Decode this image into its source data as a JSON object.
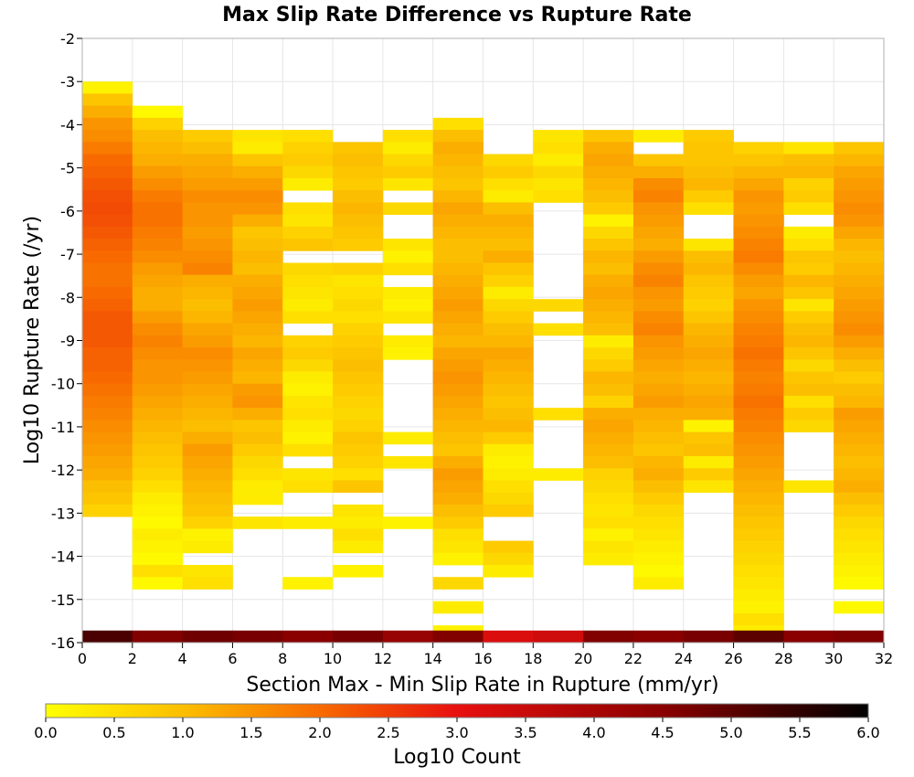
{
  "chart_data": {
    "type": "heatmap",
    "title": "Max Slip Rate Difference vs Rupture Rate",
    "xlabel": "Section Max - Min Slip Rate in Rupture (mm/yr)",
    "ylabel": "Log10 Rupture Rate (/yr)",
    "xlim": [
      0,
      32
    ],
    "ylim": [
      -16,
      -2
    ],
    "x_ticks": [
      "0",
      "2",
      "4",
      "6",
      "8",
      "10",
      "12",
      "14",
      "16",
      "18",
      "20",
      "22",
      "24",
      "26",
      "28",
      "30",
      "32"
    ],
    "y_ticks": [
      "-2",
      "-3",
      "-4",
      "-5",
      "-6",
      "-7",
      "-8",
      "-9",
      "-10",
      "-11",
      "-12",
      "-13",
      "-14",
      "-15",
      "-16"
    ],
    "grid": true,
    "x_bin_width": 2,
    "y_bin_height": 0.28,
    "colorbar": {
      "label": "Log10 Count",
      "range": [
        0.0,
        6.0
      ],
      "ticks": [
        "0.0",
        "0.5",
        "1.0",
        "1.5",
        "2.0",
        "2.5",
        "3.0",
        "3.5",
        "4.0",
        "4.5",
        "5.0",
        "5.5",
        "6.0"
      ],
      "stops": [
        [
          0.0,
          "#ffff00"
        ],
        [
          1.0,
          "#fcbe00"
        ],
        [
          2.0,
          "#f86a00"
        ],
        [
          3.0,
          "#e81010"
        ],
        [
          4.5,
          "#8a0000"
        ],
        [
          6.0,
          "#000000"
        ]
      ]
    },
    "columns": [
      {
        "x_start": 0,
        "y_top": -3.0,
        "y_bottom": -15.72,
        "low_bin_value": 5.2,
        "values": [
          0.2,
          0.9,
          1.2,
          1.5,
          1.6,
          1.8,
          2.0,
          2.1,
          2.2,
          2.3,
          2.35,
          2.3,
          2.2,
          2.1,
          2.0,
          1.9,
          1.9,
          2.0,
          2.1,
          2.2,
          2.2,
          2.2,
          2.1,
          2.1,
          2.0,
          1.9,
          1.8,
          1.7,
          1.6,
          1.5,
          1.4,
          1.3,
          1.2,
          1.0,
          0.9,
          0.7
        ]
      },
      {
        "x_start": 2,
        "y_top": -3.56,
        "y_bottom": -15.72,
        "low_bin_value": 4.6,
        "values": [
          0.1,
          0.7,
          1.0,
          1.1,
          1.2,
          1.4,
          1.6,
          1.8,
          1.9,
          1.9,
          1.8,
          1.7,
          1.6,
          1.4,
          1.3,
          1.2,
          1.2,
          1.4,
          1.6,
          1.7,
          1.6,
          1.5,
          1.5,
          1.4,
          1.3,
          1.2,
          1.1,
          1.0,
          0.9,
          0.8,
          0.7,
          0.5,
          0.3,
          0.2,
          0.1,
          0.3,
          0.2,
          0.1,
          0.5,
          0.1
        ]
      },
      {
        "x_start": 4,
        "y_top": -4.12,
        "y_bottom": -15.72,
        "low_bin_value": 4.8,
        "values": [
          0.8,
          1.0,
          1.2,
          1.3,
          1.4,
          1.6,
          1.5,
          1.5,
          1.4,
          1.5,
          1.6,
          1.7,
          1.2,
          1.1,
          1.0,
          1.1,
          1.3,
          1.4,
          1.6,
          1.5,
          1.4,
          1.3,
          1.2,
          1.1,
          1.0,
          1.2,
          1.4,
          1.3,
          1.2,
          1.1,
          1.0,
          0.9,
          0.7,
          0.2,
          0.3,
          null,
          0.4,
          0.5
        ]
      },
      {
        "x_start": 6,
        "y_top": -4.12,
        "y_bottom": -15.72,
        "low_bin_value": 4.7,
        "values": [
          0.4,
          0.3,
          0.9,
          1.2,
          1.4,
          1.6,
          1.5,
          1.2,
          0.9,
          1.0,
          1.1,
          1.0,
          1.2,
          1.3,
          1.4,
          1.3,
          1.2,
          1.1,
          1.3,
          1.2,
          1.1,
          1.4,
          1.5,
          1.2,
          0.9,
          1.0,
          0.8,
          0.6,
          0.5,
          0.3,
          0.3,
          null,
          0.4
        ]
      },
      {
        "x_start": 8,
        "y_top": -4.12,
        "y_bottom": -15.72,
        "low_bin_value": 4.5,
        "values": [
          0.5,
          0.7,
          0.8,
          0.6,
          0.3,
          null,
          0.5,
          0.4,
          0.7,
          0.9,
          null,
          0.6,
          0.5,
          0.4,
          0.3,
          0.5,
          null,
          0.7,
          0.8,
          0.6,
          0.3,
          0.2,
          0.4,
          0.5,
          0.3,
          0.2,
          0.5,
          null,
          0.4,
          0.5,
          null,
          null,
          0.3,
          null,
          null,
          null,
          null,
          0.2
        ]
      },
      {
        "x_start": 10,
        "y_top": -4.4,
        "y_bottom": -15.72,
        "low_bin_value": 4.7,
        "values": [
          0.9,
          1.0,
          0.9,
          0.8,
          1.0,
          1.1,
          1.0,
          0.9,
          0.8,
          null,
          0.7,
          0.4,
          0.5,
          0.6,
          0.5,
          0.7,
          0.8,
          0.9,
          1.0,
          0.9,
          0.8,
          0.7,
          0.6,
          0.7,
          0.9,
          0.8,
          0.7,
          0.5,
          0.9,
          null,
          0.4,
          0.3,
          0.5,
          0.3,
          null,
          0.2
        ]
      },
      {
        "x_start": 12,
        "y_top": -4.12,
        "y_bottom": -15.72,
        "low_bin_value": 4.3,
        "values": [
          0.5,
          0.3,
          0.6,
          0.8,
          0.4,
          null,
          0.6,
          null,
          null,
          0.4,
          0.2,
          0.5,
          null,
          0.3,
          0.2,
          0.4,
          null,
          0.3,
          0.2,
          null,
          null,
          null,
          null,
          null,
          null,
          0.3,
          null,
          0.4,
          null,
          null,
          null,
          null,
          0.2
        ]
      },
      {
        "x_start": 14,
        "y_top": -3.84,
        "y_bottom": -15.72,
        "low_bin_value": 4.6,
        "values": [
          0.5,
          1.0,
          1.2,
          1.1,
          1.0,
          0.9,
          1.1,
          1.3,
          1.2,
          1.1,
          1.0,
          1.0,
          1.1,
          1.2,
          1.3,
          1.4,
          1.3,
          1.2,
          1.1,
          1.3,
          1.4,
          1.5,
          1.4,
          1.3,
          1.2,
          1.1,
          1.0,
          0.9,
          1.2,
          1.4,
          1.3,
          1.2,
          1.0,
          0.8,
          0.5,
          0.4,
          0.2,
          null,
          0.6,
          null,
          0.3,
          null,
          0.2
        ]
      },
      {
        "x_start": 16,
        "y_top": -4.68,
        "y_bottom": -15.72,
        "low_bin_value": 3.2,
        "values": [
          0.6,
          0.8,
          0.5,
          0.3,
          1.0,
          1.2,
          1.1,
          1.0,
          1.2,
          0.9,
          0.7,
          0.3,
          0.6,
          0.8,
          1.0,
          1.1,
          1.3,
          1.2,
          1.1,
          1.0,
          0.9,
          1.0,
          1.1,
          0.8,
          0.3,
          0.2,
          0.3,
          0.5,
          0.6,
          0.8,
          null,
          null,
          0.8,
          0.6,
          0.3
        ]
      },
      {
        "x_start": 18,
        "y_top": -4.12,
        "y_bottom": -15.72,
        "low_bin_value": 3.4,
        "values": [
          0.4,
          0.5,
          0.3,
          0.6,
          0.4,
          0.5,
          null,
          null,
          null,
          null,
          null,
          null,
          null,
          null,
          0.6,
          null,
          0.5,
          null,
          null,
          null,
          null,
          null,
          null,
          0.5,
          null,
          null,
          null,
          null,
          0.3
        ]
      },
      {
        "x_start": 20,
        "y_top": -4.12,
        "y_bottom": -15.72,
        "low_bin_value": 4.6,
        "values": [
          0.9,
          1.2,
          1.3,
          1.2,
          1.1,
          1.0,
          0.8,
          0.2,
          0.6,
          0.9,
          1.1,
          1.0,
          1.2,
          1.3,
          1.2,
          1.1,
          1.0,
          0.3,
          0.6,
          0.8,
          1.1,
          1.0,
          0.7,
          1.2,
          1.3,
          1.2,
          1.1,
          1.0,
          0.7,
          0.6,
          0.5,
          0.4,
          0.5,
          0.2,
          0.4,
          0.3
        ]
      },
      {
        "x_start": 22,
        "y_top": -4.12,
        "y_bottom": -15.72,
        "low_bin_value": 4.5,
        "values": [
          0.3,
          null,
          0.9,
          1.2,
          1.6,
          1.7,
          1.5,
          1.4,
          1.3,
          1.2,
          1.4,
          1.6,
          1.7,
          1.5,
          1.4,
          1.6,
          1.7,
          1.5,
          1.4,
          1.3,
          1.2,
          1.3,
          1.4,
          1.2,
          1.1,
          1.0,
          0.9,
          1.1,
          1.2,
          1.0,
          0.8,
          0.6,
          0.5,
          0.4,
          0.3,
          0.2,
          0.1,
          0.3
        ]
      },
      {
        "x_start": 24,
        "y_top": -4.12,
        "y_bottom": -15.72,
        "low_bin_value": 4.7,
        "values": [
          0.8,
          0.9,
          0.9,
          1.0,
          1.1,
          0.8,
          0.5,
          null,
          null,
          0.4,
          1.0,
          1.1,
          0.9,
          0.8,
          0.7,
          0.9,
          1.1,
          1.2,
          1.3,
          1.2,
          1.1,
          1.2,
          1.3,
          1.2,
          0.2,
          0.9,
          1.0,
          0.3,
          0.8,
          0.4
        ]
      },
      {
        "x_start": 26,
        "y_top": -4.4,
        "y_bottom": -15.72,
        "low_bin_value": 5.0,
        "values": [
          0.7,
          0.9,
          1.1,
          1.3,
          1.5,
          1.4,
          1.5,
          1.6,
          1.7,
          1.8,
          1.6,
          1.4,
          1.3,
          1.5,
          1.6,
          1.7,
          1.8,
          1.9,
          1.8,
          1.7,
          1.8,
          1.9,
          1.8,
          1.7,
          1.6,
          1.5,
          1.4,
          1.3,
          1.2,
          1.1,
          1.0,
          0.9,
          0.8,
          0.7,
          0.6,
          0.5,
          0.4,
          0.3,
          0.2,
          0.5,
          0.3
        ]
      },
      {
        "x_start": 28,
        "y_top": -4.4,
        "y_bottom": -15.72,
        "low_bin_value": 4.5,
        "values": [
          0.4,
          1.0,
          1.1,
          0.7,
          0.8,
          0.5,
          null,
          0.3,
          0.5,
          0.9,
          0.8,
          1.1,
          0.9,
          0.4,
          0.8,
          1.0,
          1.1,
          0.9,
          0.6,
          0.9,
          1.0,
          0.5,
          0.8,
          0.6,
          null,
          null,
          null,
          null,
          0.4
        ]
      },
      {
        "x_start": 30,
        "y_top": -4.4,
        "y_bottom": -15.72,
        "low_bin_value": 4.6,
        "values": [
          0.9,
          1.1,
          1.3,
          1.4,
          1.5,
          1.6,
          1.5,
          1.3,
          1.1,
          1.0,
          1.1,
          1.2,
          1.3,
          1.4,
          1.5,
          1.6,
          1.4,
          1.2,
          1.0,
          0.8,
          1.0,
          1.1,
          1.4,
          1.3,
          1.2,
          1.1,
          1.0,
          1.1,
          1.2,
          1.0,
          0.8,
          0.6,
          0.5,
          0.4,
          0.3,
          0.2,
          0.1,
          null,
          0.1
        ]
      }
    ]
  }
}
